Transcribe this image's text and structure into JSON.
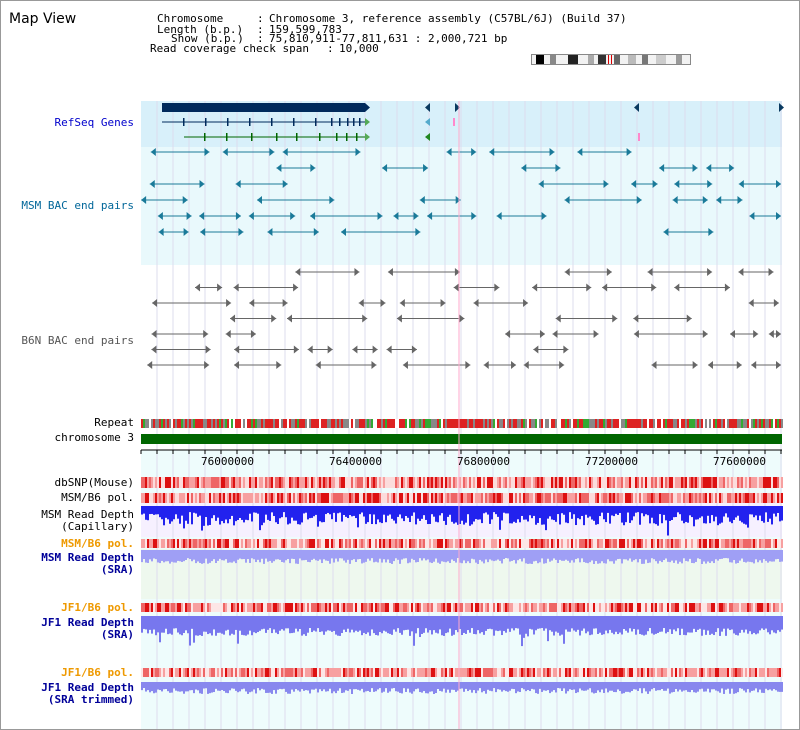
{
  "page": {
    "title": "Map View"
  },
  "info": {
    "chromosome_label": "Chromosome",
    "chromosome_value": "Chromosome 3, reference assembly (C57BL/6J) (Build 37)",
    "length_label": "Length (b.p.)",
    "length_value": "159,599,783",
    "show_label": "Show (b.p.)",
    "show_value": "75,810,911-77,811,631 : 2,000,721 bp",
    "coverage_label": "Read coverage check span",
    "coverage_value": "10,000"
  },
  "tracks": {
    "refseq": "RefSeq Genes",
    "msm_bac": "MSM BAC end pairs",
    "b6n_bac": "B6N BAC end pairs",
    "repeat": "Repeat",
    "chromosome": "chromosome 3",
    "dbsnp": "dbSNP(Mouse)",
    "msm_pol_1": "MSM/B6 pol.",
    "msm_depth_cap_1": "MSM Read Depth",
    "msm_depth_cap_2": "(Capillary)",
    "msm_pol_2": "MSM/B6 pol.",
    "msm_depth_sra_1": "MSM Read Depth",
    "msm_depth_sra_2": "(SRA)",
    "jf1_pol_1": "JF1/B6 pol.",
    "jf1_depth_1": "JF1 Read Depth",
    "jf1_depth_2": "(SRA)",
    "jf1_pol_2": "JF1/B6 pol.",
    "jf1_trim_1": "JF1 Read Depth",
    "jf1_trim_2": "(SRA trimmed)"
  },
  "axis": {
    "ticks": [
      "76000000",
      "76400000",
      "76800000",
      "77200000",
      "77600000"
    ]
  },
  "colors": {
    "refseq_label": "#0000cc",
    "msm_label": "#006699",
    "b6n_label": "#555555",
    "orange_label": "#ee9900",
    "navy_label": "#000099",
    "gene_dark": "#002a5c",
    "bac_teal": "#1a7a99",
    "chrom_green": "#006600"
  }
}
